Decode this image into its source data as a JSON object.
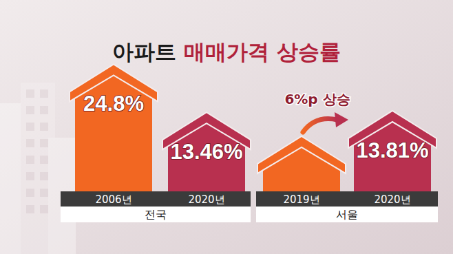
{
  "title": "아파트 매매가격 상승률",
  "chart_data": [
    {
      "type": "bar",
      "xlabel": "전국",
      "categories": [
        "2006년",
        "2020년"
      ],
      "values": [
        24.8,
        13.46
      ],
      "value_labels": [
        "24.8%",
        "13.46%"
      ],
      "colors": [
        "#f26722",
        "#b8304f"
      ],
      "ylim": [
        0,
        26
      ],
      "data_labels": true,
      "tick_labels": "x"
    },
    {
      "type": "bar",
      "xlabel": "서울",
      "categories": [
        "2019년",
        "2020년"
      ],
      "values": [
        7.81,
        13.81
      ],
      "value_labels": [
        null,
        "13.81%"
      ],
      "colors": [
        "#f26722",
        "#b8304f"
      ],
      "ylim": [
        0,
        26
      ],
      "data_labels": true,
      "tick_labels": "x",
      "annotations": [
        "6%p 상승"
      ]
    }
  ]
}
